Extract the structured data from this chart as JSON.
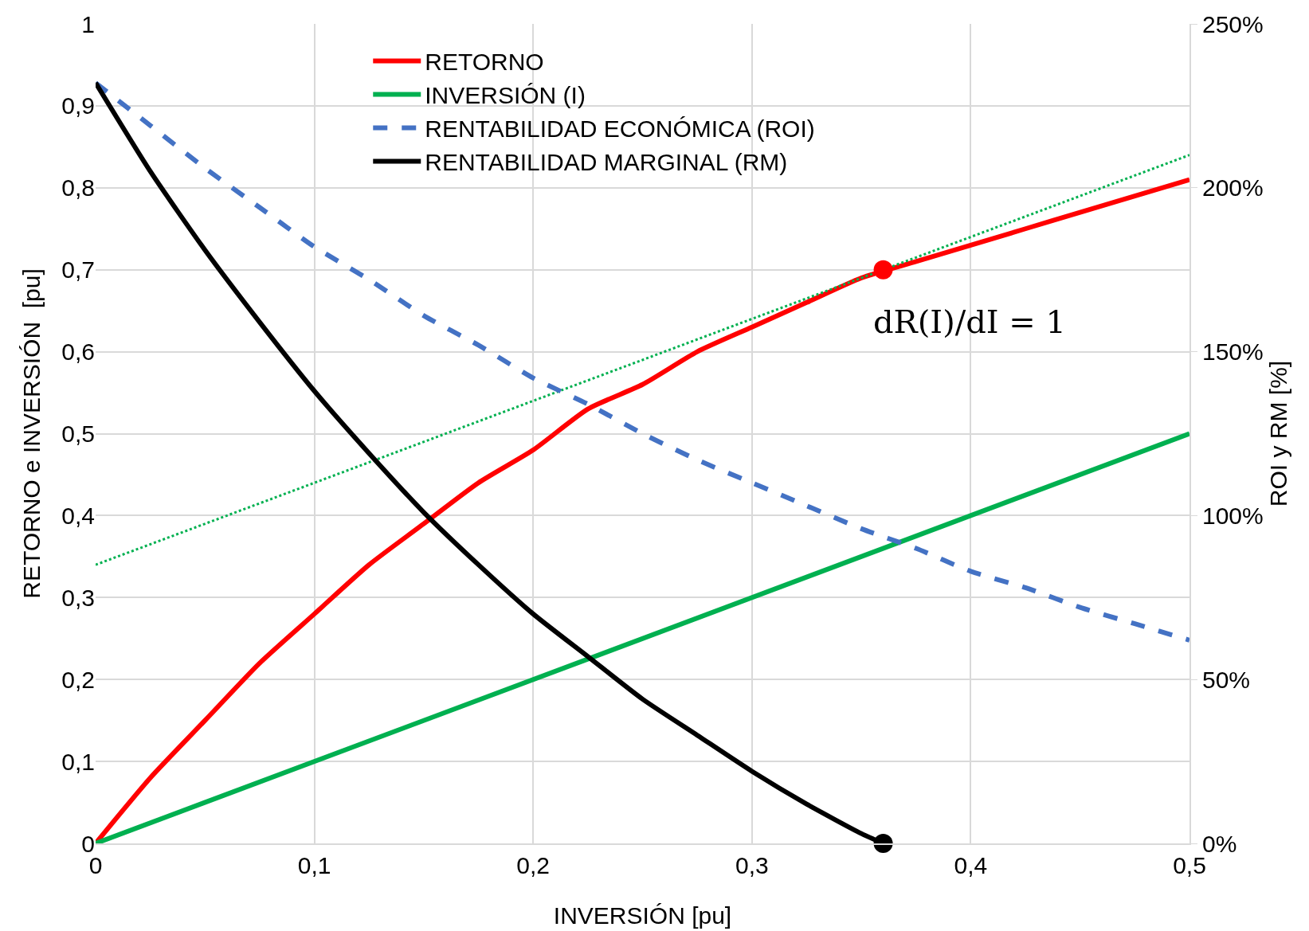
{
  "chart_data": {
    "type": "line",
    "xlabel": "INVERSIÓN [pu]",
    "ylabel": "RETORNO e INVERSIÓN  [pu]",
    "y2label": "ROI y RM [%]",
    "xlim": [
      0,
      0.5
    ],
    "xticks": [
      0,
      {
        "value": 0.1,
        "label": "0,1"
      },
      {
        "value": 0.2,
        "label": "0,2"
      },
      {
        "value": 0.3,
        "label": "0,3"
      },
      {
        "value": 0.4,
        "label": "0,4"
      },
      {
        "value": 0.5,
        "label": "0,5"
      }
    ],
    "ylim": [
      0,
      1
    ],
    "yticks": [
      0,
      {
        "value": 0.1,
        "label": "0,1"
      },
      {
        "value": 0.2,
        "label": "0,2"
      },
      {
        "value": 0.3,
        "label": "0,3"
      },
      {
        "value": 0.4,
        "label": "0,4"
      },
      {
        "value": 0.5,
        "label": "0,5"
      },
      {
        "value": 0.6,
        "label": "0,6"
      },
      {
        "value": 0.7,
        "label": "0,7"
      },
      {
        "value": 0.8,
        "label": "0,8"
      },
      {
        "value": 0.9,
        "label": "0,9"
      },
      1
    ],
    "y2lim": [
      0,
      250
    ],
    "y2ticks": [
      {
        "value": 0,
        "label": "0%"
      },
      {
        "value": 50,
        "label": "50%"
      },
      {
        "value": 100,
        "label": "100%"
      },
      {
        "value": 150,
        "label": "150%"
      },
      {
        "value": 200,
        "label": "200%"
      },
      {
        "value": 250,
        "label": "250%"
      }
    ],
    "grid": true,
    "legend": "top",
    "marker": "none",
    "annotations": [
      {
        "text": "dR(I)/dI = 1",
        "x": 0.36,
        "y": 0.7
      }
    ],
    "series": [
      {
        "name": "RETORNO",
        "color": "#ff0000",
        "x": [
          0,
          0.025,
          0.05,
          0.075,
          0.1,
          0.125,
          0.15,
          0.175,
          0.2,
          0.225,
          0.25,
          0.275,
          0.3,
          0.325,
          0.35,
          0.375,
          0.4,
          0.425,
          0.45,
          0.475,
          0.5
        ],
        "values": [
          0,
          0.08,
          0.15,
          0.22,
          0.28,
          0.34,
          0.39,
          0.44,
          0.48,
          0.53,
          0.56,
          0.6,
          0.63,
          0.66,
          0.69,
          0.71,
          0.73,
          0.75,
          0.77,
          0.79,
          0.81
        ]
      },
      {
        "name": "INVERSIÓN (I)",
        "color": "#00b050",
        "x": [
          0,
          0.5
        ],
        "values": [
          0,
          0.5
        ]
      },
      {
        "name": "RENTABILIDAD ECONÓMICA (ROI)",
        "color": "#4472c4",
        "axis": "y2",
        "line_style": "dashed",
        "x": [
          0,
          0.025,
          0.05,
          0.075,
          0.1,
          0.125,
          0.15,
          0.175,
          0.2,
          0.225,
          0.25,
          0.275,
          0.3,
          0.325,
          0.35,
          0.375,
          0.4,
          0.425,
          0.45,
          0.475,
          0.5
        ],
        "values": [
          232,
          219,
          206,
          194,
          182,
          172,
          161,
          152,
          142,
          134,
          125,
          117,
          110,
          103,
          96,
          90,
          83,
          78,
          72,
          67,
          62
        ]
      },
      {
        "name": "RENTABILIDAD MARGINAL (RM)",
        "color": "#000000",
        "axis": "y2",
        "x": [
          0,
          0.025,
          0.05,
          0.075,
          0.1,
          0.125,
          0.15,
          0.175,
          0.2,
          0.225,
          0.25,
          0.275,
          0.3,
          0.325,
          0.35,
          0.36
        ],
        "values": [
          232,
          205,
          181,
          159,
          138,
          119,
          101,
          85,
          70,
          57,
          44,
          33,
          22,
          12,
          3,
          0
        ]
      },
      {
        "color": "#00b050",
        "line_style": "dotted",
        "x": [
          0,
          0.5
        ],
        "values": [
          0.34,
          0.84
        ]
      },
      {
        "type": "scatter",
        "color": "#ff0000",
        "marker": "circle",
        "x": [
          0.36
        ],
        "values": [
          0.7
        ]
      },
      {
        "type": "scatter",
        "color": "#000000",
        "marker": "circle",
        "axis": "y2",
        "x": [
          0.36
        ],
        "values": [
          0
        ]
      }
    ]
  }
}
